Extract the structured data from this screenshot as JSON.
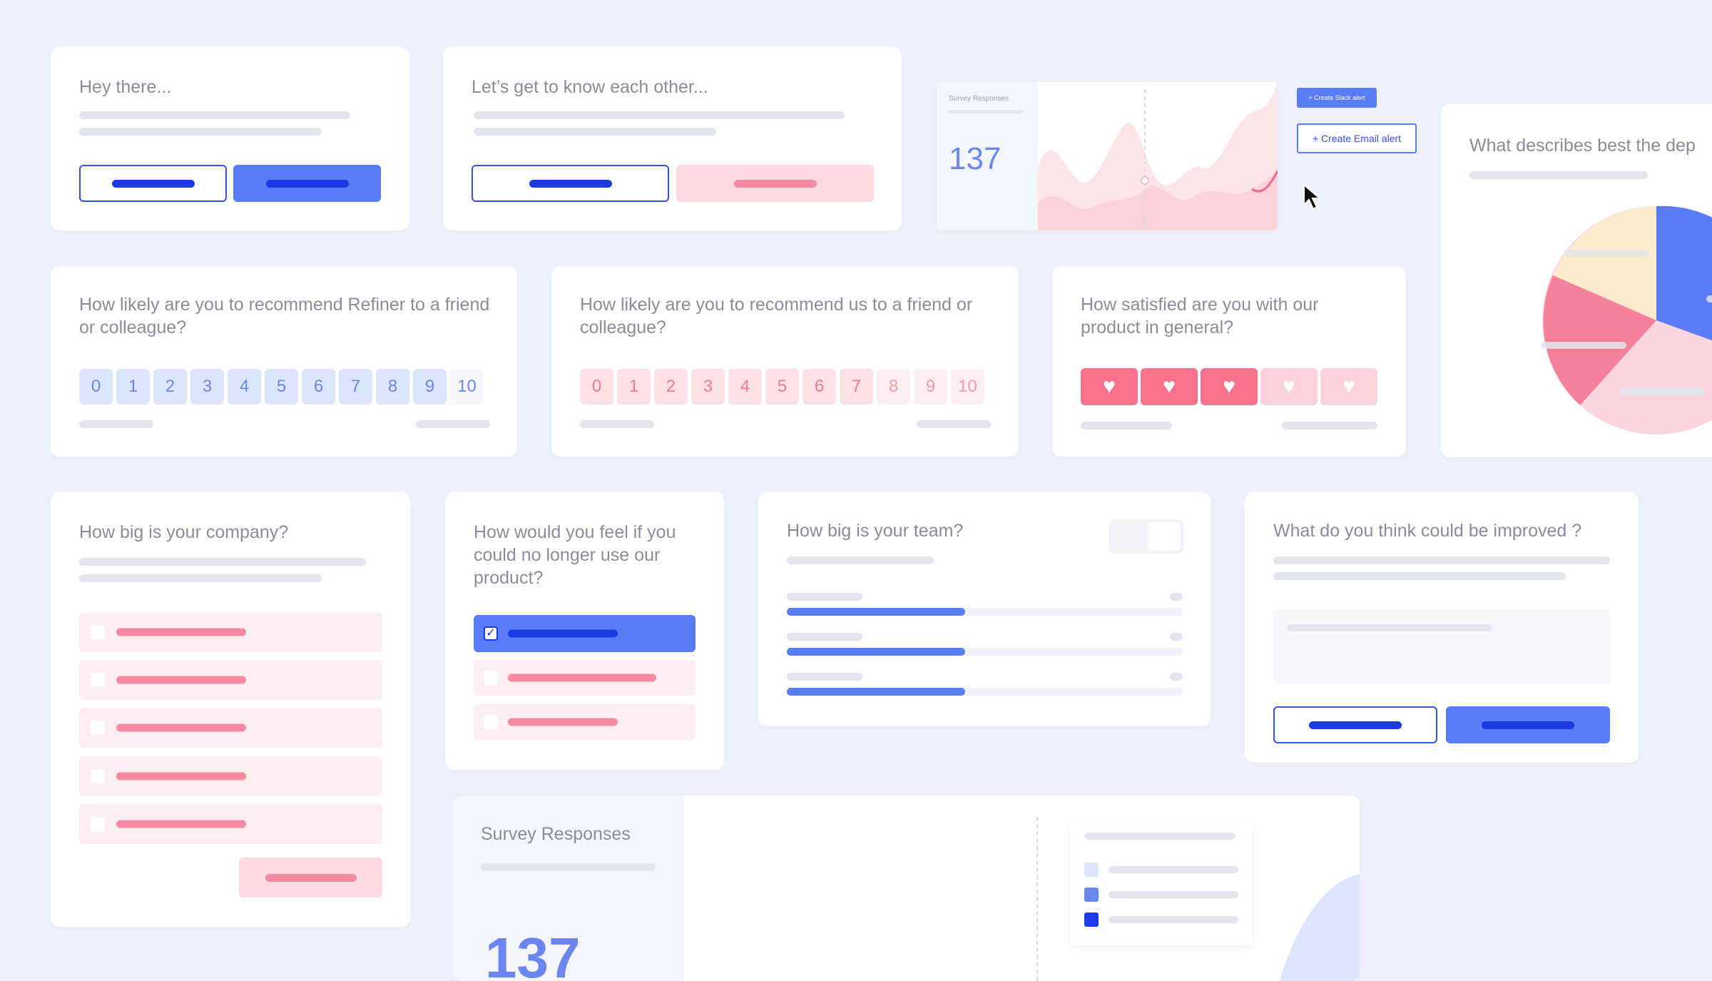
{
  "welcome": {
    "title": "Hey there..."
  },
  "intro": {
    "title": "Let’s get to know each other..."
  },
  "analytics_widget": {
    "label": "Survey Responses",
    "count": "137",
    "slack_button": "+ Create Slack alert",
    "email_button": "+ Create Email alert"
  },
  "pie_card": {
    "title": "What describes best the dep"
  },
  "nps_refiner": {
    "question": "How likely are you to recommend Refiner to a friend or colleague?",
    "scale": [
      "0",
      "1",
      "2",
      "3",
      "4",
      "5",
      "6",
      "7",
      "8",
      "9",
      "10"
    ]
  },
  "nps_us": {
    "question": "How likely are you to recommend us to a friend or colleague?",
    "scale": [
      "0",
      "1",
      "2",
      "3",
      "4",
      "5",
      "6",
      "7",
      "8",
      "9",
      "10"
    ]
  },
  "satisfaction": {
    "question": "How satisfied are you with our product in general?",
    "hearts_filled": 3,
    "hearts_total": 5
  },
  "company_size": {
    "question": "How big is your company?"
  },
  "feel_card": {
    "question": "How would you feel if you could no longer use our product?"
  },
  "team_size": {
    "question": "How big is your team?"
  },
  "improve": {
    "question": "What do you think could be improved ?"
  },
  "bottom_analytics": {
    "label": "Survey Responses",
    "count": "137"
  },
  "colors": {
    "primary": "#1b39e5",
    "accent_blue": "#5b7cf7",
    "accent_pink": "#f7738d",
    "background": "#eef1fb"
  },
  "icons": [
    "cursor-icon",
    "heart-icon",
    "checkmark-icon"
  ]
}
